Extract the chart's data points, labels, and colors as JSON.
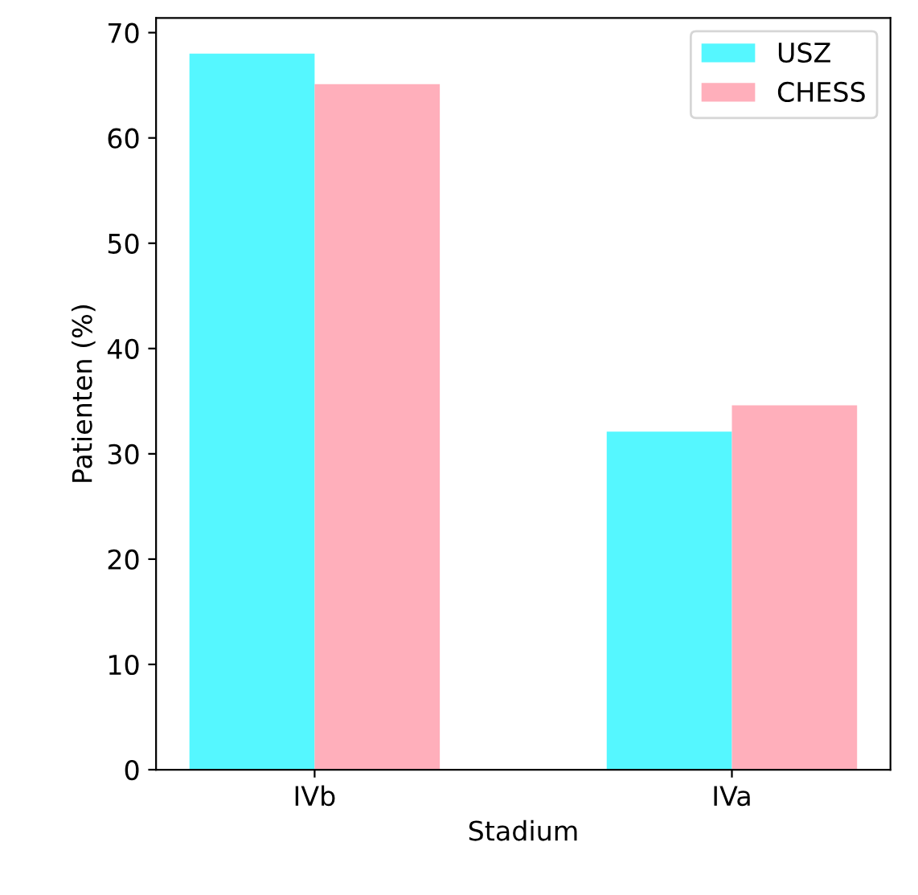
{
  "chart_data": {
    "type": "bar",
    "xlabel": "Stadium",
    "ylabel": "Patienten (%)",
    "categories": [
      "IVb",
      "IVa"
    ],
    "series": [
      {
        "name": "USZ",
        "color": "#55f7ff",
        "values": [
          68,
          32.1
        ]
      },
      {
        "name": "CHESS",
        "color": "#ffafbb",
        "values": [
          65.1,
          34.6
        ]
      }
    ],
    "ylim": [
      0,
      71.4
    ],
    "yticks": [
      0,
      10,
      20,
      30,
      40,
      50,
      60,
      70
    ],
    "grid": false,
    "legend": "top right"
  }
}
